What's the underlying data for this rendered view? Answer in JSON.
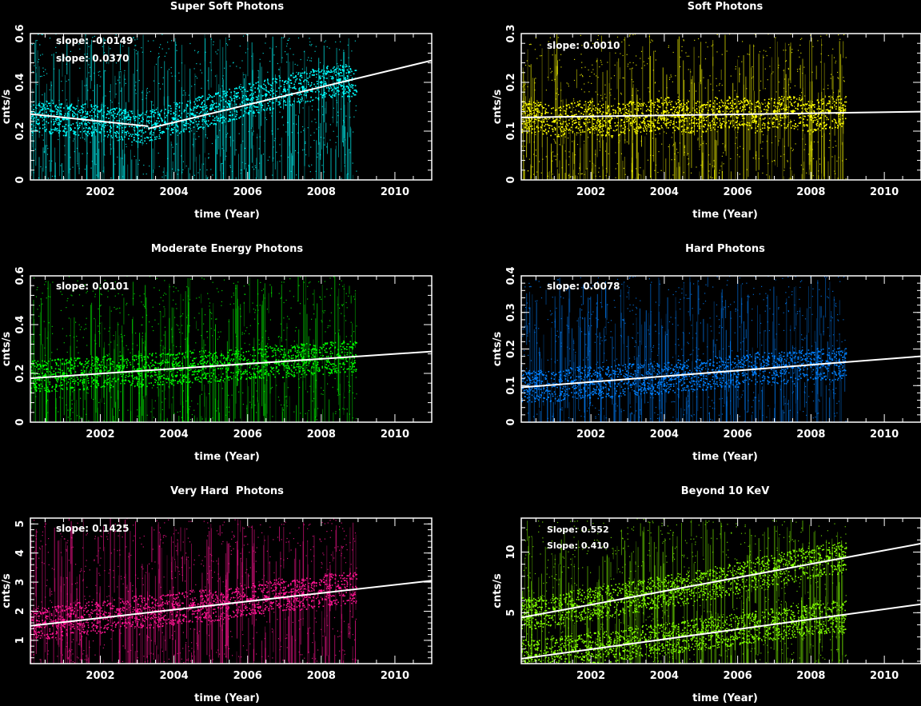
{
  "chart_data": [
    {
      "type": "scatter",
      "title": "Super Soft Photons",
      "xlabel": "time (Year)",
      "ylabel": "cnts/s",
      "xlim": [
        2000.1,
        2011.0
      ],
      "ylim": [
        0,
        0.6
      ],
      "xticks": [
        2002,
        2004,
        2006,
        2008,
        2010
      ],
      "xticklabels": [
        "2002",
        "2004",
        "2006",
        "2008",
        "2010"
      ],
      "yticks": [
        0,
        0.2,
        0.4,
        0.6
      ],
      "yticklabels": [
        "0",
        "0.2",
        "0.4",
        "0.6"
      ],
      "color": "#00ffff",
      "data_range": [
        2000.1,
        2008.95
      ],
      "series": [
        {
          "x": [
            2000.5,
            2001.0,
            2001.5,
            2002.0,
            2002.5,
            2003.0,
            2003.5,
            2004.0,
            2004.5,
            2005.0,
            2005.5,
            2006.0,
            2006.5,
            2007.0,
            2007.5,
            2008.0,
            2008.5
          ],
          "y": [
            0.26,
            0.25,
            0.25,
            0.24,
            0.23,
            0.22,
            0.23,
            0.25,
            0.27,
            0.29,
            0.31,
            0.33,
            0.35,
            0.37,
            0.38,
            0.4,
            0.41
          ]
        }
      ],
      "fits": [
        {
          "x": [
            2000.1,
            2003.3
          ],
          "y": [
            0.27,
            0.22
          ]
        },
        {
          "x": [
            2003.3,
            2011.0
          ],
          "y": [
            0.21,
            0.49
          ]
        }
      ],
      "annotations": [
        "slope: -0.0149",
        "slope: 0.0370"
      ]
    },
    {
      "type": "scatter",
      "title": "Soft Photons",
      "xlabel": "time (Year)",
      "ylabel": "cnts/s",
      "xlim": [
        2000.1,
        2011.0
      ],
      "ylim": [
        0,
        0.3
      ],
      "xticks": [
        2002,
        2004,
        2006,
        2008,
        2010
      ],
      "xticklabels": [
        "2002",
        "2004",
        "2006",
        "2008",
        "2010"
      ],
      "yticks": [
        0,
        0.1,
        0.2,
        0.3
      ],
      "yticklabels": [
        "0",
        "0.1",
        "0.2",
        "0.3"
      ],
      "color": "#ffff00",
      "data_range": [
        2000.1,
        2008.95
      ],
      "series": [
        {
          "x": [
            2000.5,
            2001.0,
            2001.5,
            2002.0,
            2002.5,
            2003.0,
            2003.5,
            2004.0,
            2004.5,
            2005.0,
            2005.5,
            2006.0,
            2006.5,
            2007.0,
            2007.5,
            2008.0,
            2008.5
          ],
          "y": [
            0.13,
            0.12,
            0.13,
            0.13,
            0.12,
            0.13,
            0.13,
            0.14,
            0.13,
            0.13,
            0.14,
            0.14,
            0.13,
            0.14,
            0.14,
            0.13,
            0.14
          ]
        }
      ],
      "fits": [
        {
          "x": [
            2000.1,
            2011.0
          ],
          "y": [
            0.128,
            0.14
          ]
        }
      ],
      "annotations": [
        "slope: 0.0010"
      ]
    },
    {
      "type": "scatter",
      "title": "Moderate Energy Photons",
      "xlabel": "time (Year)",
      "ylabel": "cnts/s",
      "xlim": [
        2000.1,
        2011.0
      ],
      "ylim": [
        0,
        0.6
      ],
      "xticks": [
        2002,
        2004,
        2006,
        2008,
        2010
      ],
      "xticklabels": [
        "2002",
        "2004",
        "2006",
        "2008",
        "2010"
      ],
      "yticks": [
        0,
        0.2,
        0.4,
        0.6
      ],
      "yticklabels": [
        "0",
        "0.2",
        "0.4",
        "0.6"
      ],
      "color": "#00ff00",
      "data_range": [
        2000.1,
        2008.95
      ],
      "series": [
        {
          "x": [
            2000.5,
            2001.0,
            2001.5,
            2002.0,
            2002.5,
            2003.0,
            2003.5,
            2004.0,
            2004.5,
            2005.0,
            2005.5,
            2006.0,
            2006.5,
            2007.0,
            2007.5,
            2008.0,
            2008.5
          ],
          "y": [
            0.19,
            0.2,
            0.2,
            0.21,
            0.21,
            0.21,
            0.22,
            0.22,
            0.23,
            0.23,
            0.24,
            0.24,
            0.25,
            0.25,
            0.26,
            0.26,
            0.27
          ]
        }
      ],
      "fits": [
        {
          "x": [
            2000.1,
            2011.0
          ],
          "y": [
            0.18,
            0.29
          ]
        }
      ],
      "annotations": [
        "slope: 0.0101"
      ]
    },
    {
      "type": "scatter",
      "title": "Hard Photons",
      "xlabel": "time (Year)",
      "ylabel": "cnts/s",
      "xlim": [
        2000.1,
        2011.0
      ],
      "ylim": [
        0,
        0.4
      ],
      "xticks": [
        2002,
        2004,
        2006,
        2008,
        2010
      ],
      "xticklabels": [
        "2002",
        "2004",
        "2006",
        "2008",
        "2010"
      ],
      "yticks": [
        0,
        0.1,
        0.2,
        0.3,
        0.4
      ],
      "yticklabels": [
        "0",
        "0.1",
        "0.2",
        "0.3",
        "0.4"
      ],
      "color": "#0080ff",
      "data_range": [
        2000.1,
        2008.95
      ],
      "series": [
        {
          "x": [
            2000.5,
            2001.0,
            2001.5,
            2002.0,
            2002.5,
            2003.0,
            2003.5,
            2004.0,
            2004.5,
            2005.0,
            2005.5,
            2006.0,
            2006.5,
            2007.0,
            2007.5,
            2008.0,
            2008.5
          ],
          "y": [
            0.1,
            0.1,
            0.11,
            0.11,
            0.11,
            0.12,
            0.12,
            0.12,
            0.13,
            0.13,
            0.14,
            0.14,
            0.15,
            0.15,
            0.15,
            0.16,
            0.16
          ]
        }
      ],
      "fits": [
        {
          "x": [
            2000.1,
            2011.0
          ],
          "y": [
            0.095,
            0.18
          ]
        }
      ],
      "annotations": [
        "slope: 0.0078"
      ]
    },
    {
      "type": "scatter",
      "title": "Very Hard  Photons",
      "xlabel": "time (Year)",
      "ylabel": "cnts/s",
      "xlim": [
        2000.1,
        2011.0
      ],
      "ylim": [
        0.2,
        5.2
      ],
      "xticks": [
        2002,
        2004,
        2006,
        2008,
        2010
      ],
      "xticklabels": [
        "2002",
        "2004",
        "2006",
        "2008",
        "2010"
      ],
      "yticks": [
        1,
        2,
        3,
        4,
        5
      ],
      "yticklabels": [
        "1",
        "2",
        "3",
        "4",
        "5"
      ],
      "color": "#ff1493",
      "data_range": [
        2000.1,
        2008.95
      ],
      "series": [
        {
          "x": [
            2000.5,
            2001.0,
            2001.5,
            2002.0,
            2002.5,
            2003.0,
            2003.5,
            2004.0,
            2004.5,
            2005.0,
            2005.5,
            2006.0,
            2006.5,
            2007.0,
            2007.5,
            2008.0,
            2008.5
          ],
          "y": [
            1.6,
            1.7,
            1.8,
            1.8,
            1.9,
            2.0,
            2.0,
            2.1,
            2.2,
            2.2,
            2.3,
            2.4,
            2.5,
            2.6,
            2.6,
            2.7,
            2.8
          ]
        }
      ],
      "fits": [
        {
          "x": [
            2000.1,
            2011.0
          ],
          "y": [
            1.5,
            3.05
          ]
        }
      ],
      "annotations": [
        "slope: 0.1425"
      ]
    },
    {
      "type": "scatter",
      "title": "Beyond 10 KeV",
      "xlabel": "time (Year)",
      "ylabel": "cnts/s",
      "xlim": [
        2000.1,
        2011.0
      ],
      "ylim": [
        0.8,
        12.8
      ],
      "xticks": [
        2002,
        2004,
        2006,
        2008,
        2010
      ],
      "xticklabels": [
        "2002",
        "2004",
        "2006",
        "2008",
        "2010"
      ],
      "yticks": [
        5,
        10
      ],
      "yticklabels": [
        "5",
        "10"
      ],
      "color": "#80ff00",
      "data_range": [
        2000.1,
        2008.95
      ],
      "series": [
        {
          "x": [
            2000.5,
            2001.0,
            2001.5,
            2002.0,
            2002.5,
            2003.0,
            2003.5,
            2004.0,
            2004.5,
            2005.0,
            2005.5,
            2006.0,
            2006.5,
            2007.0,
            2007.5,
            2008.0,
            2008.5
          ],
          "y": [
            5.0,
            5.3,
            5.6,
            5.8,
            6.0,
            6.3,
            6.6,
            6.8,
            7.0,
            7.3,
            7.6,
            7.9,
            8.3,
            8.6,
            8.9,
            9.2,
            9.5
          ]
        },
        {
          "x": [
            2000.5,
            2001.0,
            2001.5,
            2002.0,
            2002.5,
            2003.0,
            2003.5,
            2004.0,
            2004.5,
            2005.0,
            2005.5,
            2006.0,
            2006.5,
            2007.0,
            2007.5,
            2008.0,
            2008.5
          ],
          "y": [
            1.5,
            1.7,
            1.9,
            2.1,
            2.3,
            2.5,
            2.7,
            2.9,
            3.1,
            3.3,
            3.5,
            3.7,
            3.9,
            4.1,
            4.3,
            4.5,
            4.7
          ]
        }
      ],
      "fits": [
        {
          "x": [
            2000.1,
            2011.0
          ],
          "y": [
            4.6,
            10.7
          ]
        },
        {
          "x": [
            2000.1,
            2011.0
          ],
          "y": [
            1.2,
            5.7
          ]
        }
      ],
      "annotations": [
        "Slope: 0.552",
        "Slope: 0.410"
      ]
    }
  ]
}
